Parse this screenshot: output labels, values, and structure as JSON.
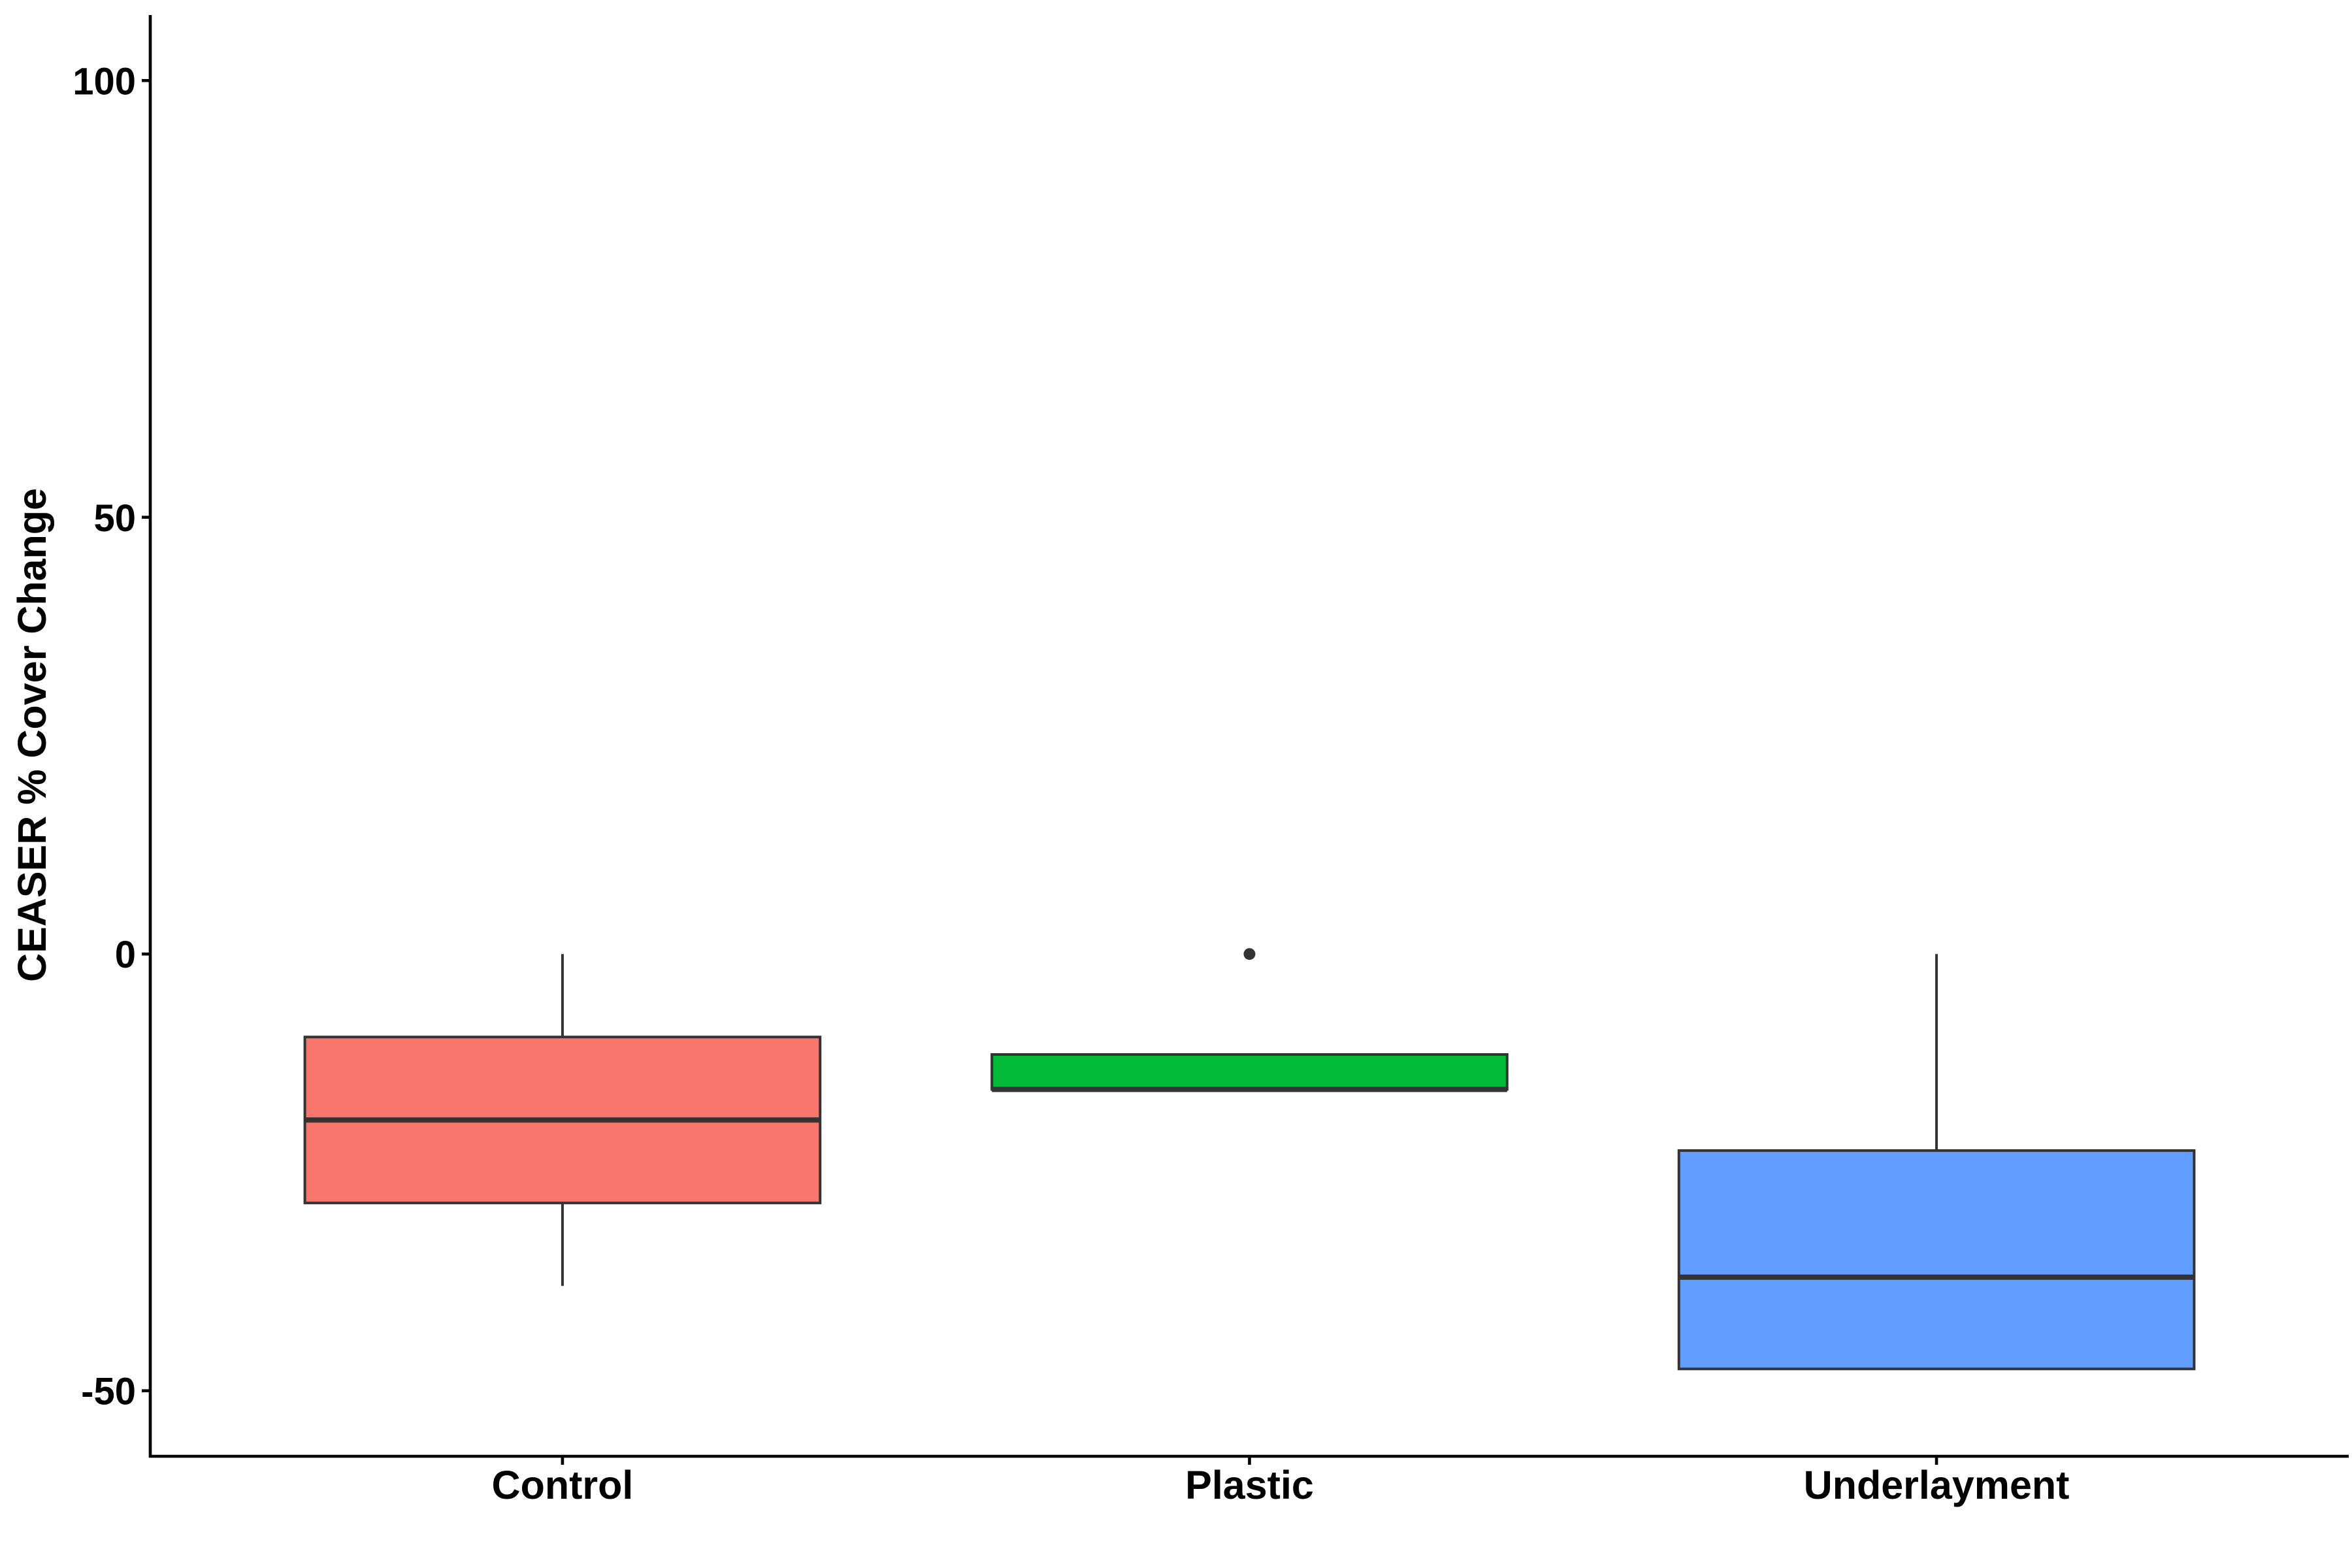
{
  "chart_data": {
    "type": "boxplot",
    "title": "",
    "xlabel": "",
    "ylabel": "CEASER % Cover Change",
    "ylim": [
      -57.5,
      107.5
    ],
    "yticks": [
      -50,
      0,
      50,
      100
    ],
    "ytick_labels": [
      "-50",
      "0",
      "50",
      "100"
    ],
    "grid": false,
    "legend": "none",
    "categories": [
      "Control",
      "Plastic",
      "Underlayment"
    ],
    "boxes": [
      {
        "name": "Control",
        "whisker_low": -38,
        "q1": -28.5,
        "median": -19,
        "q3": -9.5,
        "whisker_high": 0,
        "outliers": [],
        "color": "#F8766D"
      },
      {
        "name": "Plastic",
        "whisker_low": -15.5,
        "q1": -15.5,
        "median": -15.5,
        "q3": -11.5,
        "whisker_high": -11.5,
        "outliers": [
          0
        ],
        "color": "#00BA38"
      },
      {
        "name": "Underlayment",
        "whisker_low": -47.5,
        "q1": -47.5,
        "median": -37,
        "q3": -22.5,
        "whisker_high": 0,
        "outliers": [],
        "color": "#619CFF"
      }
    ]
  }
}
